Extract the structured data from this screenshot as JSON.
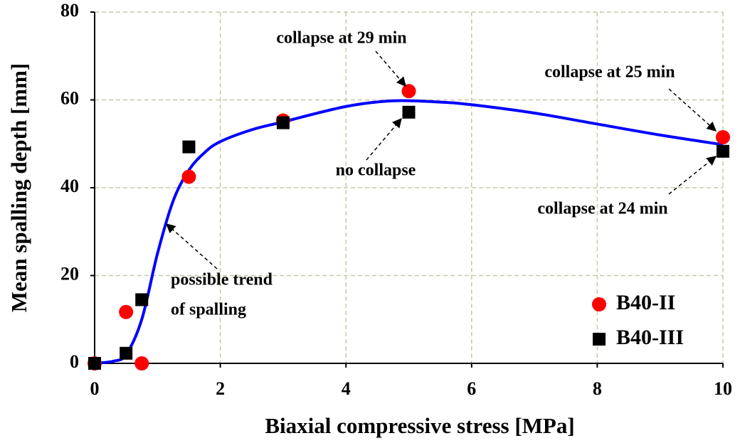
{
  "chart_data": {
    "type": "scatter",
    "x_label": "Biaxial compressive stress [MPa]",
    "y_label": "Mean spalling depth [mm]",
    "xlim": [
      0,
      10
    ],
    "xticks": [
      0,
      2,
      4,
      6,
      8,
      10
    ],
    "ylim": [
      0,
      80
    ],
    "yticks": [
      0,
      20,
      40,
      60,
      80
    ],
    "grid": true,
    "legend": "lower right",
    "series": [
      {
        "name": "B40-II",
        "color": "#ff0000",
        "marker": "circle",
        "x": [
          0,
          0.5,
          0.75,
          1.5,
          3,
          5,
          10
        ],
        "values": [
          0,
          11.7,
          0,
          42.5,
          55.3,
          62,
          51.5
        ]
      },
      {
        "name": "B40-III",
        "color": "#000000",
        "marker": "square",
        "x": [
          0,
          0.5,
          0.75,
          1.5,
          3,
          5,
          10
        ],
        "values": [
          0,
          2.3,
          14.5,
          49.3,
          54.8,
          57.2,
          48.3
        ]
      }
    ],
    "trend": {
      "color": "#0000ff",
      "x": [
        0,
        0.3,
        0.5,
        0.75,
        1,
        1.25,
        1.5,
        1.75,
        2,
        2.5,
        3,
        4,
        4.75,
        5.5,
        6,
        7,
        8,
        9,
        10
      ],
      "values": [
        0,
        0.5,
        2,
        10,
        25,
        37,
        44,
        48,
        50.5,
        53.2,
        55,
        58.5,
        59.8,
        59.5,
        58.9,
        57,
        54.5,
        52,
        49.8
      ],
      "label": [
        "possible trend",
        "of spalling"
      ]
    },
    "annotations": [
      "collapse at 29 min",
      "collapse at 25 min",
      "no collapse",
      "collapse at 24 min"
    ]
  }
}
